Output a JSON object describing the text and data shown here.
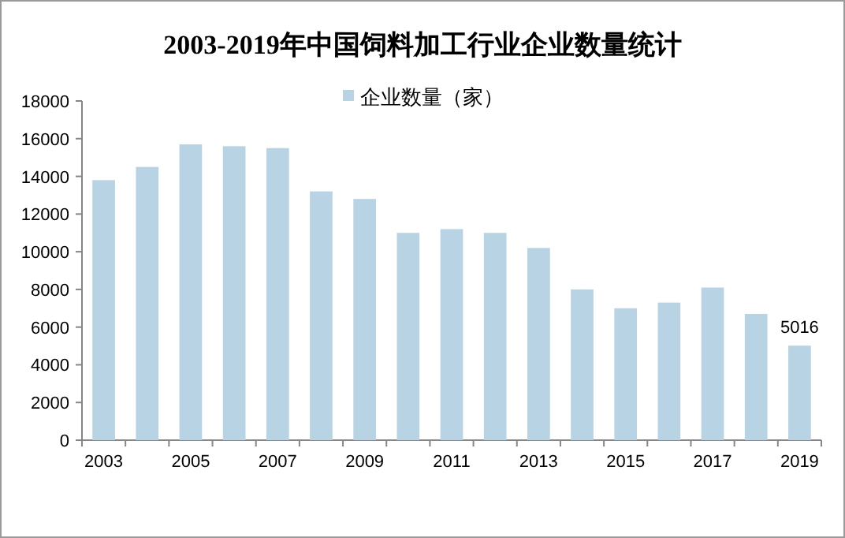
{
  "chart_data": {
    "type": "bar",
    "title": "2003-2019年中国饲料加工行业企业数量统计",
    "categories": [
      "2003",
      null,
      "2005",
      null,
      "2007",
      null,
      "2009",
      null,
      "2011",
      null,
      "2013",
      null,
      "2015",
      null,
      "2017",
      null,
      "2019"
    ],
    "series": [
      {
        "name": "企业数量（家）",
        "color": "#b7d3e4",
        "values": [
          13800,
          14500,
          15700,
          15600,
          15500,
          13200,
          12800,
          11000,
          11200,
          11000,
          10200,
          8000,
          7000,
          7300,
          8100,
          6700,
          5016
        ],
        "value_labels": [
          null,
          null,
          null,
          null,
          null,
          null,
          null,
          null,
          null,
          null,
          null,
          null,
          null,
          null,
          null,
          null,
          "5016"
        ]
      }
    ],
    "ylim": [
      0,
      18000
    ],
    "yticks": [
      0,
      2000,
      4000,
      6000,
      8000,
      10000,
      12000,
      14000,
      16000,
      18000
    ],
    "legend": "top",
    "grid": false
  }
}
